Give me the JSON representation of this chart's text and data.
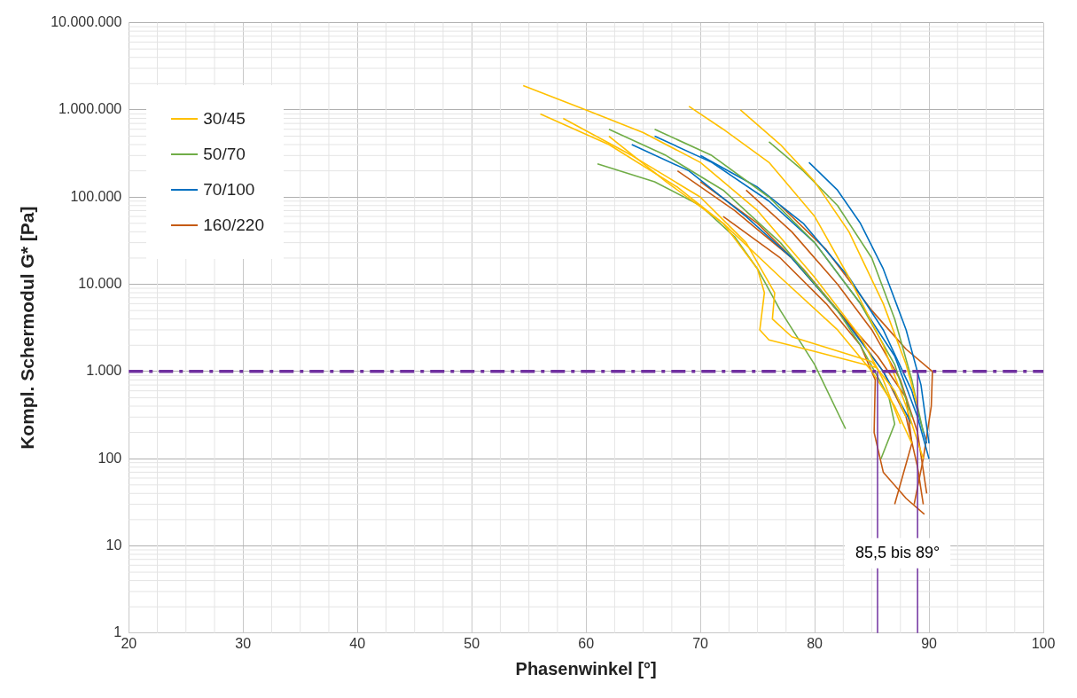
{
  "chart_data": {
    "type": "line",
    "xlabel": "Phasenwinkel [°]",
    "ylabel": "Kompl. Schermodul G* [Pa]",
    "log": "y",
    "grid": true,
    "legend": "top left",
    "marker": "none",
    "line_style": "solid",
    "xlim": [
      20,
      100
    ],
    "xticks": [
      20,
      30,
      40,
      50,
      60,
      70,
      80,
      90,
      100
    ],
    "ylim": [
      1,
      10000000
    ],
    "yticks": [
      1,
      10,
      100,
      {
        "value": 1000,
        "label": "1.000"
      },
      {
        "value": 10000,
        "label": "10.000"
      },
      {
        "value": 100000,
        "label": "100.000"
      },
      {
        "value": 1000000,
        "label": "1.000.000"
      },
      {
        "value": 10000000,
        "label": "10.000.000"
      }
    ],
    "series": [
      {
        "name": "30/45",
        "color": "#ffc000",
        "x": [
          54.5,
          60,
          65,
          70,
          75,
          80,
          84,
          86,
          87.5
        ],
        "values": [
          1900000,
          1000000,
          550000,
          250000,
          70000,
          12000,
          2500,
          800,
          250
        ]
      },
      {
        "color": "#ffc000",
        "x": [
          69,
          72,
          76,
          80,
          83,
          86,
          88,
          89.5
        ],
        "values": [
          1100000,
          600000,
          250000,
          60000,
          12000,
          2000,
          400,
          100
        ]
      },
      {
        "color": "#ffc000",
        "x": [
          73.5,
          77,
          80,
          83,
          86,
          88,
          89
        ],
        "values": [
          1000000,
          400000,
          150000,
          40000,
          6000,
          1200,
          400
        ]
      },
      {
        "color": "#ffc000",
        "x": [
          56,
          62,
          68,
          72,
          75,
          75.6,
          75.2,
          76,
          80,
          85.5
        ],
        "values": [
          900000,
          400000,
          130000,
          50000,
          15000,
          8000,
          3000,
          2300,
          1700,
          1100
        ]
      },
      {
        "color": "#ffc000",
        "x": [
          58,
          64,
          70,
          74,
          76.5,
          76.3,
          78,
          85,
          87,
          88
        ],
        "values": [
          800000,
          300000,
          100000,
          30000,
          8000,
          4000,
          2500,
          1300,
          600,
          300
        ]
      },
      {
        "color": "#ffc000",
        "x": [
          62,
          67,
          72,
          77,
          82,
          85,
          87,
          88.5
        ],
        "values": [
          500000,
          150000,
          50000,
          12000,
          3000,
          1000,
          400,
          150
        ]
      },
      {
        "name": "50/70",
        "color": "#70ad47",
        "x": [
          61,
          66,
          70,
          73,
          75,
          77,
          80,
          82.7
        ],
        "values": [
          240000,
          150000,
          80000,
          35000,
          15000,
          5000,
          1200,
          220
        ]
      },
      {
        "color": "#70ad47",
        "x": [
          62,
          67,
          72,
          77,
          82,
          84,
          86.5,
          87,
          85.8
        ],
        "values": [
          600000,
          300000,
          120000,
          30000,
          5000,
          2000,
          500,
          250,
          100
        ]
      },
      {
        "color": "#70ad47",
        "x": [
          66,
          71,
          76,
          80,
          84,
          87,
          88.5
        ],
        "values": [
          600000,
          300000,
          100000,
          30000,
          6000,
          1200,
          300
        ]
      },
      {
        "color": "#70ad47",
        "x": [
          76,
          79,
          82,
          85,
          87,
          88.5,
          89.5
        ],
        "values": [
          430000,
          200000,
          80000,
          20000,
          4000,
          800,
          200
        ]
      },
      {
        "name": "70/100",
        "color": "#0070c0",
        "x": [
          79.5,
          82,
          84,
          86,
          88,
          89.3,
          90
        ],
        "values": [
          250000,
          120000,
          50000,
          15000,
          3000,
          700,
          150
        ]
      },
      {
        "color": "#0070c0",
        "x": [
          66,
          71,
          76,
          80,
          84,
          87,
          89,
          90
        ],
        "values": [
          500000,
          250000,
          90000,
          30000,
          6000,
          1500,
          300,
          100
        ]
      },
      {
        "color": "#0070c0",
        "x": [
          70,
          75,
          79,
          83,
          86,
          88.5,
          89.8
        ],
        "values": [
          300000,
          130000,
          50000,
          12000,
          3000,
          600,
          150
        ]
      },
      {
        "color": "#0070c0",
        "x": [
          64,
          69,
          74,
          78,
          82,
          86,
          88.5
        ],
        "values": [
          400000,
          200000,
          60000,
          20000,
          5000,
          1000,
          250
        ]
      },
      {
        "name": "160/220",
        "color": "#c55a11",
        "x": [
          70,
          75,
          79,
          83,
          86,
          88,
          89,
          89.5
        ],
        "values": [
          150000,
          50000,
          15000,
          3500,
          1000,
          300,
          80,
          30
        ]
      },
      {
        "color": "#c55a11",
        "x": [
          74,
          78,
          82,
          85,
          87.5,
          89,
          89.8
        ],
        "values": [
          120000,
          40000,
          10000,
          3000,
          800,
          200,
          40
        ]
      },
      {
        "color": "#c55a11",
        "x": [
          77,
          81,
          85,
          88,
          90.3,
          90.2,
          89.5,
          88.7
        ],
        "values": [
          80000,
          25000,
          5000,
          1800,
          1000,
          400,
          100,
          30
        ]
      },
      {
        "color": "#c55a11",
        "x": [
          72,
          77,
          81,
          84,
          85.3,
          85.2,
          86,
          88,
          89.6
        ],
        "values": [
          60000,
          20000,
          6000,
          2000,
          800,
          200,
          70,
          35,
          23
        ]
      },
      {
        "color": "#c55a11",
        "x": [
          68,
          73,
          78,
          82,
          85.5,
          88,
          88.5,
          87
        ],
        "values": [
          200000,
          70000,
          20000,
          5000,
          1500,
          500,
          150,
          30
        ]
      }
    ],
    "ref_lines": [
      {
        "axis": "y",
        "value": 1000,
        "color": "#7030a0",
        "line_style": "dashed"
      },
      {
        "axis": "x",
        "value": 85.5,
        "color": "#7030a0",
        "line_style": "solid"
      },
      {
        "axis": "x",
        "value": 89,
        "color": "#7030a0",
        "line_style": "solid"
      }
    ],
    "annotations": [
      "85,5 bis 89°"
    ]
  }
}
